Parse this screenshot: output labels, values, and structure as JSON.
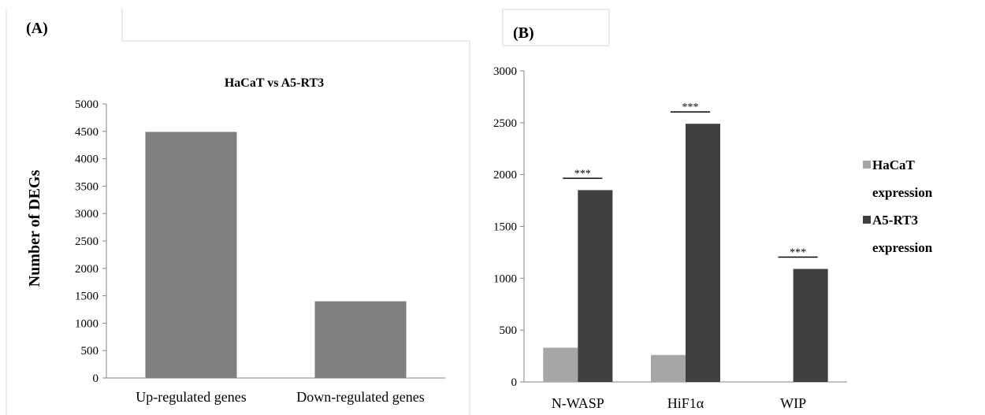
{
  "panels": {
    "a_label": "(A)",
    "b_label": "(B)"
  },
  "chart_data": [
    {
      "type": "bar",
      "title": "HaCaT  vs A5-RT3",
      "xlabel": "",
      "ylabel": "Number of DEGs",
      "categories": [
        "Up-regulated genes",
        "Down-regulated genes"
      ],
      "values": [
        4490,
        1400
      ],
      "ylim": [
        0,
        5000
      ],
      "yticks": [
        0,
        500,
        1000,
        1500,
        2000,
        2500,
        3000,
        3500,
        4000,
        4500,
        5000
      ],
      "grid": false,
      "legend": "none",
      "colors": {
        "bar": "#7f7f7f"
      }
    },
    {
      "type": "bar",
      "title": "",
      "xlabel": "",
      "ylabel": "",
      "categories": [
        "N-WASP",
        "HiF1α",
        "WIP"
      ],
      "series": [
        {
          "name": "HaCaT expression",
          "values": [
            330,
            260,
            0
          ]
        },
        {
          "name": "A5-RT3 expression",
          "values": [
            1850,
            2490,
            1090
          ]
        }
      ],
      "significance": [
        "***",
        "***",
        "***"
      ],
      "ylim": [
        0,
        3000
      ],
      "yticks": [
        0,
        500,
        1000,
        1500,
        2000,
        2500,
        3000
      ],
      "grid": false,
      "legend": "right",
      "legend_lines": [
        [
          "HaCaT",
          "expression"
        ],
        [
          "A5-RT3",
          "expression"
        ]
      ],
      "colors": {
        "series0": "#a6a6a6",
        "series1": "#404040"
      }
    }
  ]
}
